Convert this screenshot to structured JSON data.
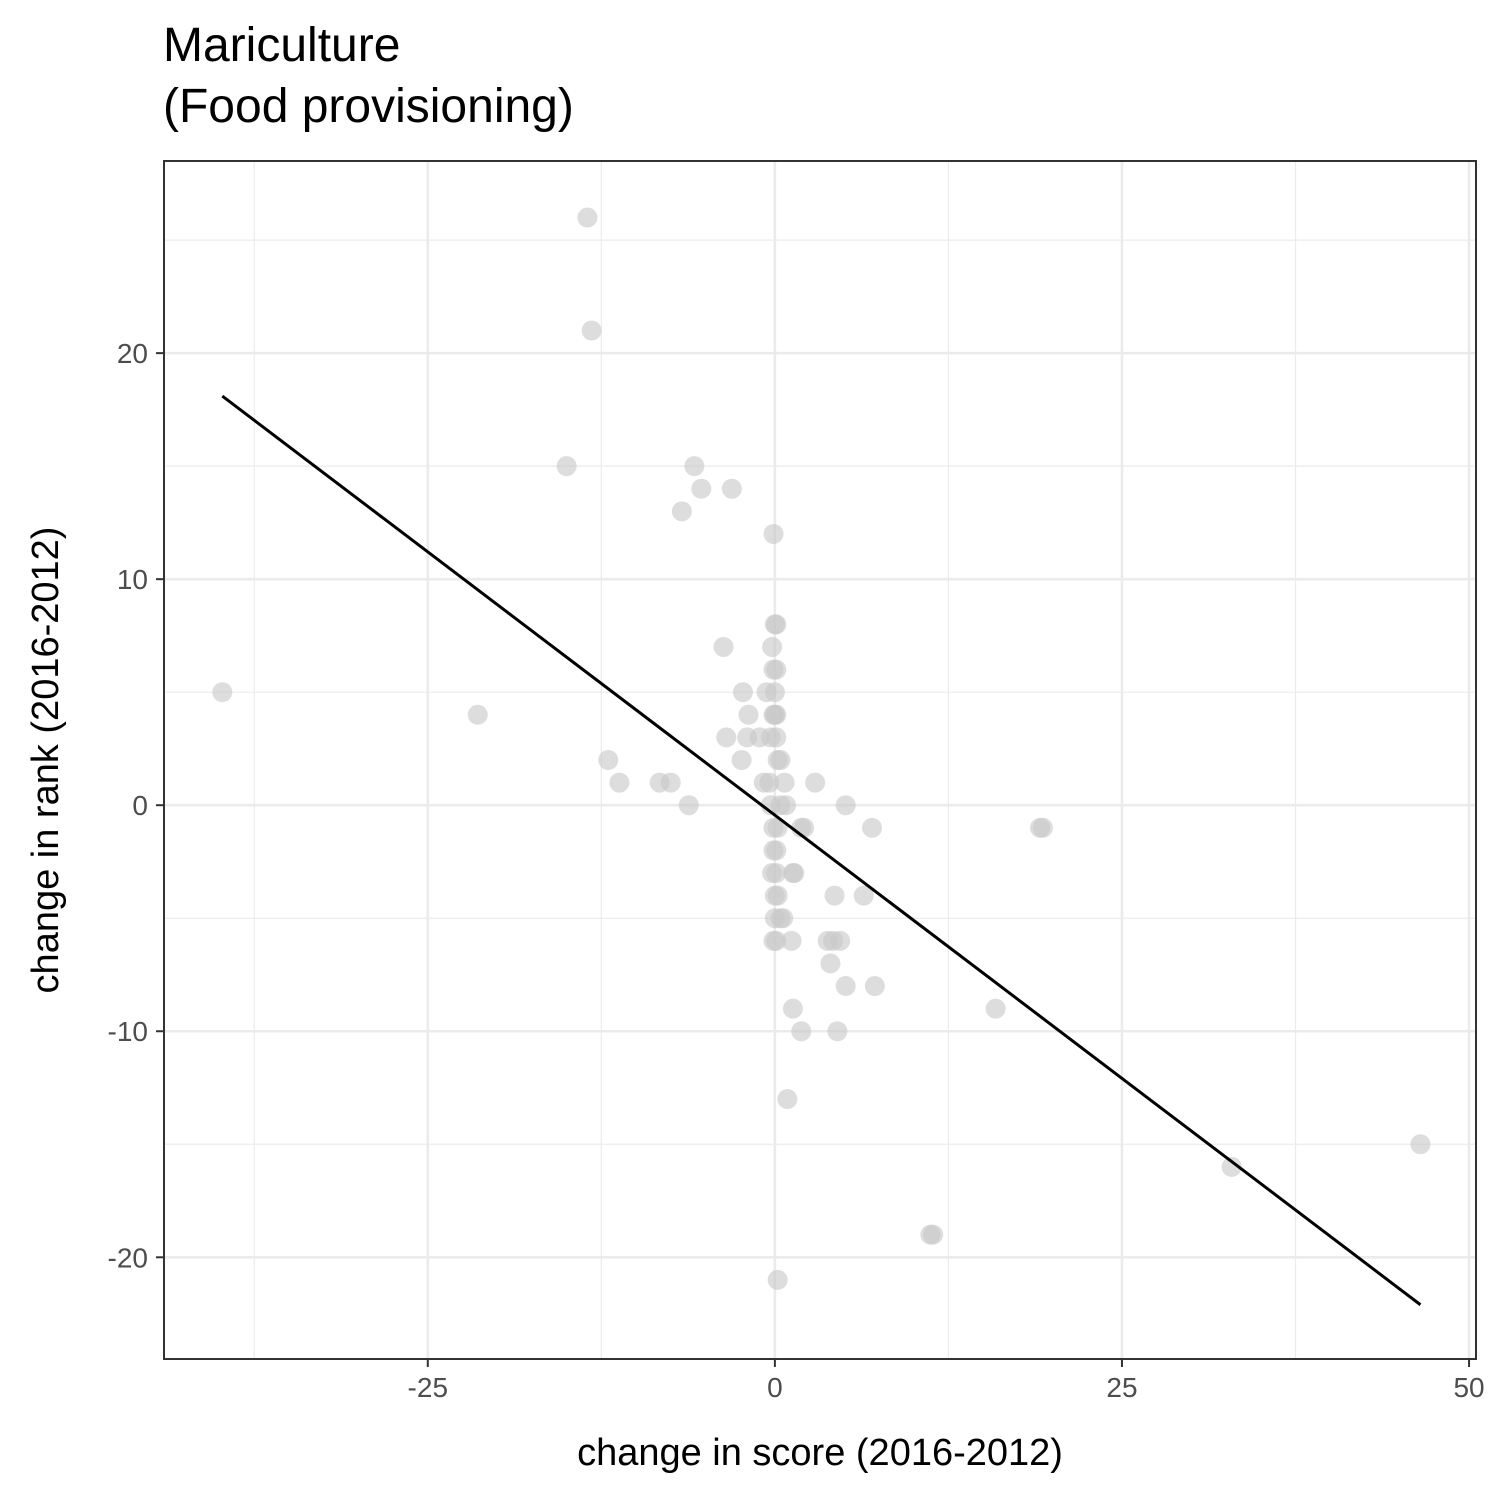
{
  "chart_data": {
    "type": "scatter",
    "title": "Mariculture",
    "subtitle": "(Food provisioning)",
    "xlabel": "change in score (2016-2012)",
    "ylabel": "change in rank (2016-2012)",
    "xlim": [
      -44,
      50.5
    ],
    "ylim": [
      -24.5,
      28.5
    ],
    "x_ticks": [
      -25,
      0,
      25,
      50
    ],
    "x_tick_labels": [
      "-25",
      "0",
      "25",
      "50"
    ],
    "y_ticks": [
      -20,
      -10,
      0,
      10,
      20
    ],
    "y_tick_labels": [
      "-20",
      "-10",
      "0",
      "10",
      "20"
    ],
    "grid": true,
    "point_color": "#c8c8c8",
    "line_color": "#000000",
    "points": [
      {
        "x": -13.5,
        "y": 26
      },
      {
        "x": -13.2,
        "y": 21
      },
      {
        "x": -15.0,
        "y": 15
      },
      {
        "x": -5.8,
        "y": 15
      },
      {
        "x": -5.3,
        "y": 14
      },
      {
        "x": -3.1,
        "y": 14
      },
      {
        "x": -6.7,
        "y": 13
      },
      {
        "x": -0.1,
        "y": 12
      },
      {
        "x": 0.0,
        "y": 8
      },
      {
        "x": 0.1,
        "y": 8
      },
      {
        "x": -3.7,
        "y": 7
      },
      {
        "x": -0.2,
        "y": 7
      },
      {
        "x": -0.1,
        "y": 6
      },
      {
        "x": 0.1,
        "y": 6
      },
      {
        "x": -39.8,
        "y": 5
      },
      {
        "x": -2.3,
        "y": 5
      },
      {
        "x": -0.6,
        "y": 5
      },
      {
        "x": 0.0,
        "y": 5
      },
      {
        "x": -21.4,
        "y": 4
      },
      {
        "x": -1.9,
        "y": 4
      },
      {
        "x": -0.1,
        "y": 4
      },
      {
        "x": 0.0,
        "y": 4
      },
      {
        "x": 0.1,
        "y": 4
      },
      {
        "x": -3.5,
        "y": 3
      },
      {
        "x": -2.0,
        "y": 3
      },
      {
        "x": -1.1,
        "y": 3
      },
      {
        "x": -0.3,
        "y": 3
      },
      {
        "x": 0.1,
        "y": 3
      },
      {
        "x": -12.0,
        "y": 2
      },
      {
        "x": -2.4,
        "y": 2
      },
      {
        "x": 0.2,
        "y": 2
      },
      {
        "x": 0.4,
        "y": 2
      },
      {
        "x": -11.2,
        "y": 1
      },
      {
        "x": -8.3,
        "y": 1
      },
      {
        "x": -7.5,
        "y": 1
      },
      {
        "x": -0.8,
        "y": 1
      },
      {
        "x": -0.4,
        "y": 1
      },
      {
        "x": 0.7,
        "y": 1
      },
      {
        "x": 2.9,
        "y": 1
      },
      {
        "x": -6.2,
        "y": 0
      },
      {
        "x": -0.3,
        "y": 0
      },
      {
        "x": 0.4,
        "y": 0
      },
      {
        "x": 0.8,
        "y": 0
      },
      {
        "x": 5.1,
        "y": 0
      },
      {
        "x": -0.1,
        "y": -1
      },
      {
        "x": 0.2,
        "y": -1
      },
      {
        "x": 1.9,
        "y": -1
      },
      {
        "x": 2.1,
        "y": -1
      },
      {
        "x": 7.0,
        "y": -1
      },
      {
        "x": 19.1,
        "y": -1
      },
      {
        "x": 19.3,
        "y": -1
      },
      {
        "x": -0.1,
        "y": -2
      },
      {
        "x": 0.1,
        "y": -2
      },
      {
        "x": -0.2,
        "y": -3
      },
      {
        "x": 0.1,
        "y": -3
      },
      {
        "x": 1.3,
        "y": -3
      },
      {
        "x": 1.4,
        "y": -3
      },
      {
        "x": 0.0,
        "y": -4
      },
      {
        "x": 0.2,
        "y": -4
      },
      {
        "x": 4.3,
        "y": -4
      },
      {
        "x": 6.4,
        "y": -4
      },
      {
        "x": 0.0,
        "y": -5
      },
      {
        "x": 0.4,
        "y": -5
      },
      {
        "x": 0.6,
        "y": -5
      },
      {
        "x": -0.1,
        "y": -6
      },
      {
        "x": 0.1,
        "y": -6
      },
      {
        "x": 1.2,
        "y": -6
      },
      {
        "x": 3.8,
        "y": -6
      },
      {
        "x": 4.2,
        "y": -6
      },
      {
        "x": 4.7,
        "y": -6
      },
      {
        "x": 4.0,
        "y": -7
      },
      {
        "x": 5.1,
        "y": -8
      },
      {
        "x": 7.2,
        "y": -8
      },
      {
        "x": 1.3,
        "y": -9
      },
      {
        "x": 15.9,
        "y": -9
      },
      {
        "x": 1.9,
        "y": -10
      },
      {
        "x": 4.5,
        "y": -10
      },
      {
        "x": 0.9,
        "y": -13
      },
      {
        "x": 46.5,
        "y": -15
      },
      {
        "x": 32.9,
        "y": -16
      },
      {
        "x": 11.2,
        "y": -19
      },
      {
        "x": 11.4,
        "y": -19
      },
      {
        "x": 0.2,
        "y": -21
      }
    ],
    "trend_line": {
      "x": [
        -39.8,
        46.5
      ],
      "y": [
        18.1,
        -22.1
      ]
    }
  }
}
